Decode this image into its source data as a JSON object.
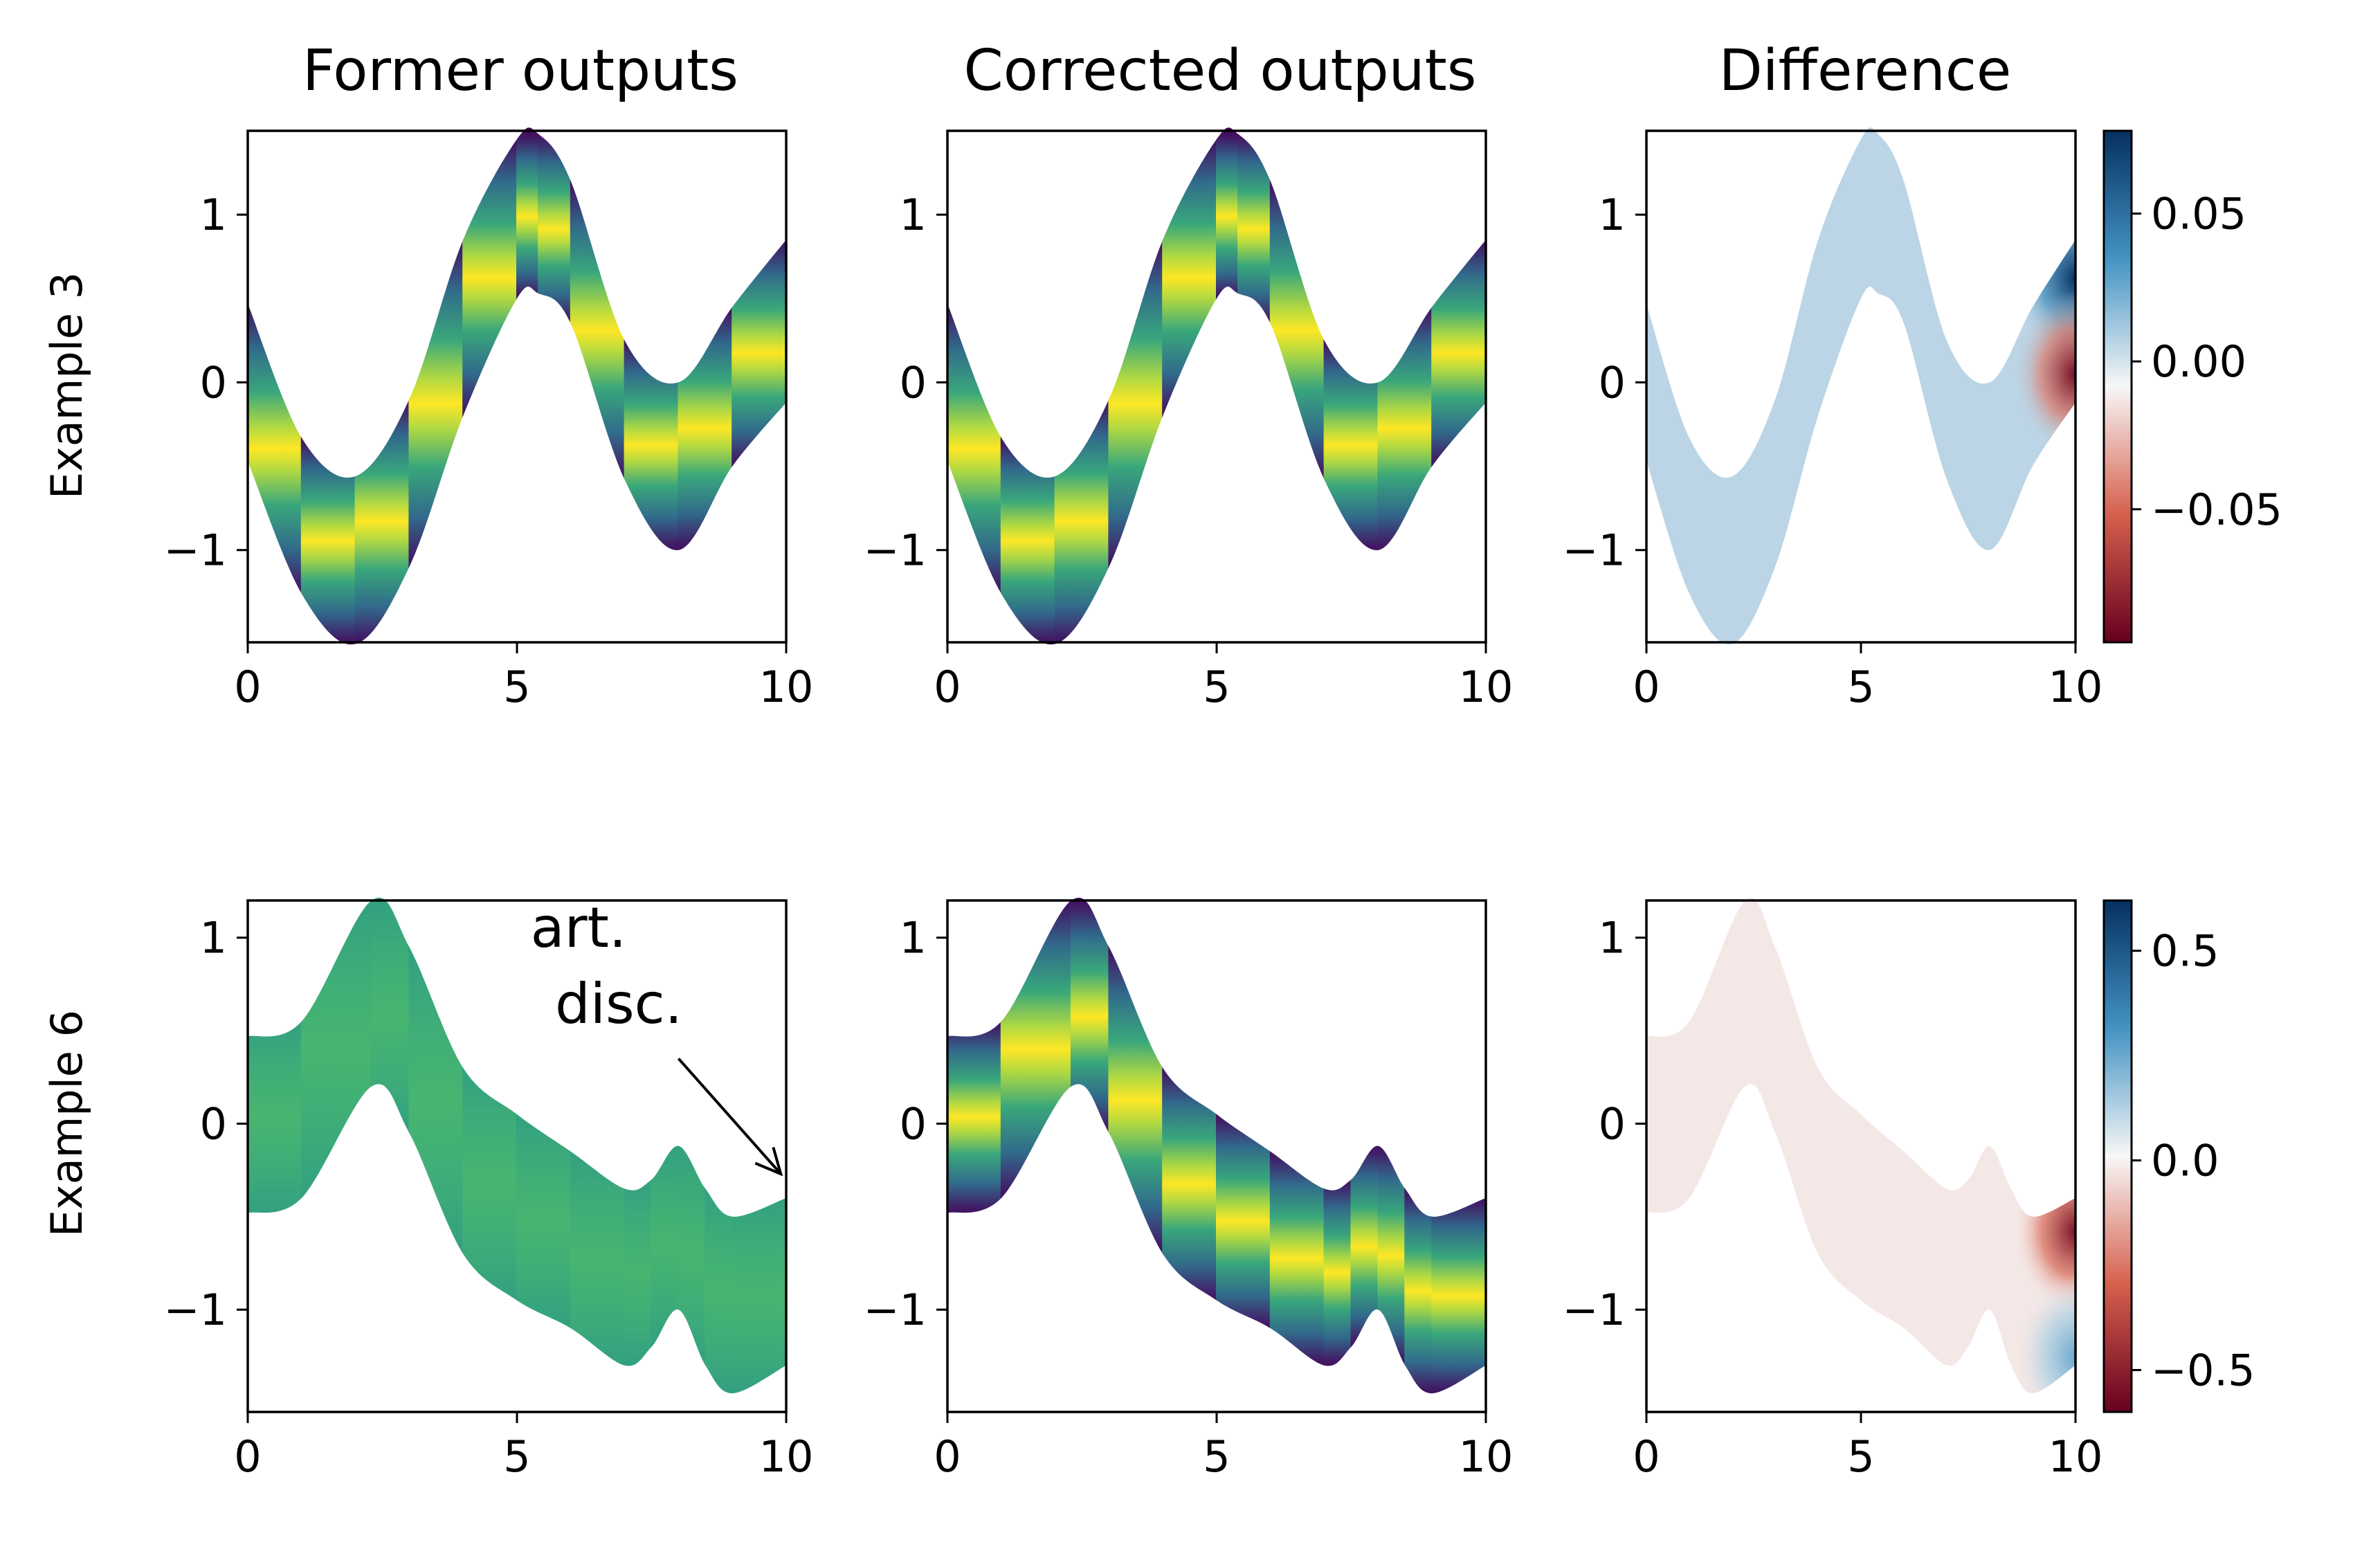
{
  "figure": {
    "column_titles": [
      "Former outputs",
      "Corrected outputs",
      "Difference"
    ],
    "row_labels": [
      "Example 3",
      "Example 6"
    ],
    "annotation": {
      "line1": "art.",
      "line2": "disc."
    }
  },
  "colors": {
    "background": "#ffffff",
    "axes": "#000000",
    "viridis": [
      "#440154",
      "#3b528b",
      "#21918c",
      "#5ec962",
      "#fde725"
    ],
    "rdbu": [
      "#67001f",
      "#d6604d",
      "#f7f7f7",
      "#4393c3",
      "#053061"
    ]
  },
  "chart_data": [
    {
      "type": "area",
      "row": 0,
      "col": 0,
      "colormap": "viridis",
      "title": "Former outputs",
      "ylabel": "Example 3",
      "xlim": [
        0,
        10
      ],
      "ylim": [
        -1.55,
        1.5
      ],
      "xticks": [
        0,
        5,
        10
      ],
      "yticks": [
        -1,
        0,
        1
      ],
      "x": [
        0,
        1,
        2,
        3,
        4,
        5,
        5.4,
        6,
        7,
        8,
        9,
        10
      ],
      "upper": [
        0.47,
        -0.33,
        -0.56,
        -0.1,
        0.85,
        1.45,
        1.48,
        1.2,
        0.25,
        0.0,
        0.45,
        0.85
      ],
      "lower": [
        -0.47,
        -1.26,
        -1.56,
        -1.1,
        -0.2,
        0.5,
        0.53,
        0.35,
        -0.58,
        -1.0,
        -0.5,
        -0.12
      ],
      "center": [
        0.0,
        -0.8,
        -1.06,
        -0.6,
        0.32,
        0.97,
        1.0,
        0.77,
        -0.16,
        -0.5,
        -0.03,
        0.36
      ],
      "profile": "peaked"
    },
    {
      "type": "area",
      "row": 0,
      "col": 1,
      "colormap": "viridis",
      "title": "Corrected outputs",
      "xlim": [
        0,
        10
      ],
      "ylim": [
        -1.55,
        1.5
      ],
      "xticks": [
        0,
        5,
        10
      ],
      "yticks": [
        -1,
        0,
        1
      ],
      "x": [
        0,
        1,
        2,
        3,
        4,
        5,
        5.4,
        6,
        7,
        8,
        9,
        10
      ],
      "upper": [
        0.47,
        -0.33,
        -0.56,
        -0.1,
        0.85,
        1.45,
        1.48,
        1.2,
        0.25,
        0.0,
        0.45,
        0.85
      ],
      "lower": [
        -0.47,
        -1.26,
        -1.56,
        -1.1,
        -0.2,
        0.5,
        0.53,
        0.35,
        -0.58,
        -1.0,
        -0.5,
        -0.12
      ],
      "center": [
        0.0,
        -0.8,
        -1.06,
        -0.6,
        0.32,
        0.97,
        1.0,
        0.77,
        -0.16,
        -0.5,
        -0.03,
        0.36
      ],
      "profile": "peaked"
    },
    {
      "type": "heatmap",
      "row": 0,
      "col": 2,
      "colormap": "RdBu",
      "title": "Difference",
      "xlim": [
        0,
        10
      ],
      "ylim": [
        -1.55,
        1.5
      ],
      "xticks": [
        0,
        5,
        10
      ],
      "yticks": [
        -1,
        0,
        1
      ],
      "x": [
        0,
        1,
        2,
        3,
        4,
        5,
        5.4,
        6,
        7,
        8,
        9,
        10
      ],
      "upper": [
        0.47,
        -0.33,
        -0.56,
        -0.1,
        0.85,
        1.45,
        1.48,
        1.2,
        0.25,
        0.0,
        0.45,
        0.85
      ],
      "lower": [
        -0.47,
        -1.26,
        -1.56,
        -1.1,
        -0.2,
        0.5,
        0.53,
        0.35,
        -0.58,
        -1.0,
        -0.5,
        -0.12
      ],
      "base_value": 0.006,
      "edge_effects": [
        {
          "y": 0.62,
          "value": 0.078
        },
        {
          "y": 0.05,
          "value": -0.09
        }
      ],
      "colorbar": {
        "range": [
          -0.095,
          0.078
        ],
        "ticks": [
          0.05,
          0.0,
          -0.05
        ],
        "tick_labels": [
          "0.05",
          "0.00",
          "−0.05"
        ]
      }
    },
    {
      "type": "area",
      "row": 1,
      "col": 0,
      "colormap": "viridis",
      "ylabel": "Example 6",
      "xlim": [
        0,
        10
      ],
      "ylim": [
        -1.55,
        1.2
      ],
      "xticks": [
        0,
        5,
        10
      ],
      "yticks": [
        -1,
        0,
        1
      ],
      "x": [
        0,
        1,
        2.3,
        3,
        4,
        5,
        6,
        7,
        7.5,
        8,
        8.5,
        9,
        10
      ],
      "upper": [
        0.47,
        0.55,
        1.2,
        0.95,
        0.3,
        0.05,
        -0.15,
        -0.35,
        -0.3,
        -0.12,
        -0.35,
        -0.5,
        -0.4
      ],
      "lower": [
        -0.48,
        -0.4,
        0.2,
        -0.05,
        -0.7,
        -0.95,
        -1.1,
        -1.3,
        -1.2,
        -1.0,
        -1.3,
        -1.45,
        -1.3
      ],
      "center": [
        0.0,
        0.08,
        0.7,
        0.45,
        -0.2,
        -0.45,
        -0.62,
        -0.82,
        -0.75,
        -0.56,
        -0.82,
        -0.97,
        -0.85
      ],
      "profile": "flat",
      "annotation_arrow": {
        "from": [
          8.0,
          0.35
        ],
        "to": [
          9.9,
          -0.27
        ]
      }
    },
    {
      "type": "area",
      "row": 1,
      "col": 1,
      "colormap": "viridis",
      "xlim": [
        0,
        10
      ],
      "ylim": [
        -1.55,
        1.2
      ],
      "xticks": [
        0,
        5,
        10
      ],
      "yticks": [
        -1,
        0,
        1
      ],
      "x": [
        0,
        1,
        2.3,
        3,
        4,
        5,
        6,
        7,
        7.5,
        8,
        8.5,
        9,
        10
      ],
      "upper": [
        0.47,
        0.55,
        1.2,
        0.95,
        0.3,
        0.05,
        -0.15,
        -0.35,
        -0.3,
        -0.12,
        -0.35,
        -0.5,
        -0.4
      ],
      "lower": [
        -0.48,
        -0.4,
        0.2,
        -0.05,
        -0.7,
        -0.95,
        -1.1,
        -1.3,
        -1.2,
        -1.0,
        -1.3,
        -1.45,
        -1.3
      ],
      "center": [
        0.0,
        0.08,
        0.7,
        0.45,
        -0.2,
        -0.45,
        -0.62,
        -0.82,
        -0.75,
        -0.56,
        -0.82,
        -0.97,
        -0.85
      ],
      "profile": "peaked"
    },
    {
      "type": "heatmap",
      "row": 1,
      "col": 2,
      "colormap": "RdBu",
      "xlim": [
        0,
        10
      ],
      "ylim": [
        -1.55,
        1.2
      ],
      "xticks": [
        0,
        5,
        10
      ],
      "yticks": [
        -1,
        0,
        1
      ],
      "x": [
        0,
        1,
        2.3,
        3,
        4,
        5,
        6,
        7,
        7.5,
        8,
        8.5,
        9,
        10
      ],
      "upper": [
        0.47,
        0.55,
        1.2,
        0.95,
        0.3,
        0.05,
        -0.15,
        -0.35,
        -0.3,
        -0.12,
        -0.35,
        -0.5,
        -0.4
      ],
      "lower": [
        -0.48,
        -0.4,
        0.2,
        -0.05,
        -0.7,
        -0.95,
        -1.1,
        -1.3,
        -1.2,
        -1.0,
        -1.3,
        -1.45,
        -1.3
      ],
      "base_value": -0.02,
      "edge_effects": [
        {
          "y": -0.58,
          "value": -0.55
        },
        {
          "y": -1.25,
          "value": 0.25
        }
      ],
      "colorbar": {
        "range": [
          -0.6,
          0.62
        ],
        "ticks": [
          0.5,
          0.0,
          -0.5
        ],
        "tick_labels": [
          "0.5",
          "0.0",
          "−0.5"
        ]
      }
    }
  ]
}
